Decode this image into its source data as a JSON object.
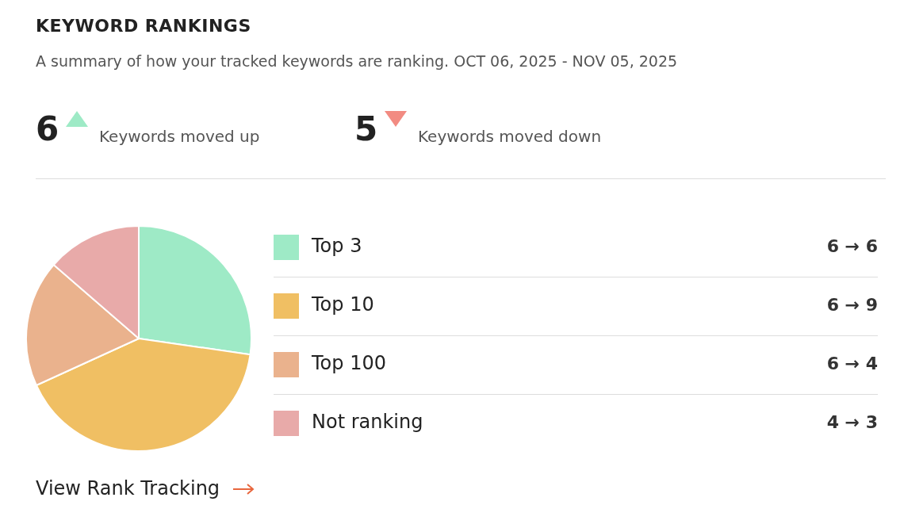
{
  "chart_data": {
    "type": "pie",
    "title": "KEYWORD RANKINGS",
    "subtitle": "A summary of how your tracked keywords are ranking. OCT 06, 2025 - NOV 05, 2025",
    "categories": [
      "Top 3",
      "Top 10",
      "Top 100",
      "Not ranking"
    ],
    "values": [
      6,
      9,
      4,
      3
    ],
    "colors": [
      "#9eeac6",
      "#f0bf63",
      "#eab28d",
      "#e8aaa9"
    ],
    "value_labels": [
      "6 → 6",
      "6 → 9",
      "6 → 4",
      "4 → 3"
    ],
    "legend": "right",
    "annotations": [
      "6",
      "Keywords moved up",
      "5",
      "Keywords moved down",
      "View Rank Tracking"
    ]
  }
}
